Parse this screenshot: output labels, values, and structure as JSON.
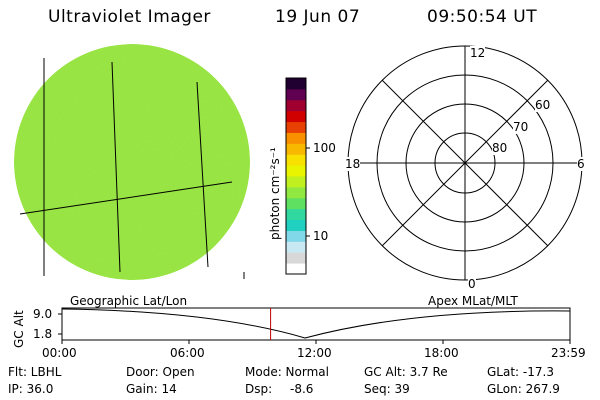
{
  "header": {
    "instrument": "Ultraviolet Imager",
    "date": "19 Jun 07",
    "time": "09:50:54 UT"
  },
  "colorbar": {
    "unit": "photon cm⁻²s⁻¹",
    "tick_labels": [
      "100",
      "10"
    ],
    "scale": "log",
    "colors": [
      "#ffffff",
      "#d8d8d8",
      "#c8e8f4",
      "#80d8e8",
      "#20d0c0",
      "#30d8a0",
      "#60e060",
      "#90e840",
      "#c0f020",
      "#e8f400",
      "#f8e000",
      "#f8b800",
      "#f89000",
      "#e84000",
      "#d00000",
      "#a00030",
      "#600050",
      "#200030"
    ]
  },
  "globe": {
    "fill_color": "#88e038"
  },
  "polar_plot": {
    "mlt_labels": {
      "top": "12",
      "left": "18",
      "right": "6",
      "bottom": "0"
    },
    "lat_labels": [
      "60",
      "70",
      "80"
    ]
  },
  "timeline": {
    "left_label": "Geographic Lat/Lon",
    "right_label": "Apex MLat/MLT",
    "yaxis_label": "GC Alt",
    "y_ticks": [
      "9.0",
      "1.8"
    ],
    "x_ticks": [
      "00:00",
      "06:00",
      "12:00",
      "18:00",
      "23:59"
    ],
    "marker_time": "09:50:54",
    "marker_color": "#c00000"
  },
  "info": {
    "filter": "Flt: LBHL",
    "ip": "IP: 36.0",
    "door": "Door: Open",
    "gain": "Gain: 14",
    "mode": "Mode: Normal",
    "dsp_label": "Dsp:",
    "dsp_value": "-8.6",
    "gc_alt": "GC Alt: 3.7 Re",
    "seq": "Seq: 39",
    "glat": "GLat: -17.3",
    "glon": "GLon: 267.9"
  }
}
